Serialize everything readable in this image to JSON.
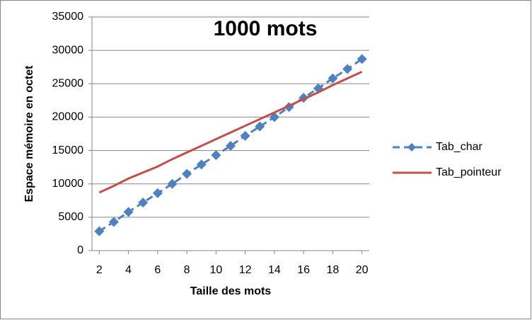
{
  "chart_data": {
    "type": "line",
    "title": "1000 mots",
    "x_label": "Taille des mots",
    "y_label": "Espace mémoire en octet",
    "x": [
      2,
      3,
      4,
      5,
      6,
      7,
      8,
      9,
      10,
      11,
      12,
      13,
      14,
      15,
      16,
      17,
      18,
      19,
      20
    ],
    "series": [
      {
        "name": "Tab_char",
        "color": "#4f81bd",
        "dash": true,
        "marker": "diamond",
        "values": [
          2900,
          4300,
          5800,
          7200,
          8600,
          10000,
          11500,
          12900,
          14300,
          15700,
          17200,
          18600,
          20000,
          21500,
          22900,
          24300,
          25800,
          27200,
          28700
        ]
      },
      {
        "name": "Tab_pointeur",
        "color": "#c0504d",
        "dash": false,
        "marker": null,
        "values": [
          8700,
          9700,
          10800,
          11700,
          12600,
          13700,
          14700,
          15700,
          16700,
          17700,
          18700,
          19700,
          20700,
          21700,
          22700,
          23700,
          24800,
          25800,
          26800
        ]
      }
    ],
    "xlim": [
      1.5,
      20.5
    ],
    "xticks": [
      2,
      4,
      6,
      8,
      10,
      12,
      14,
      16,
      18,
      20
    ],
    "ylim": [
      0,
      35000
    ],
    "yticks": [
      0,
      5000,
      10000,
      15000,
      20000,
      25000,
      30000,
      35000
    ],
    "grid": true,
    "legend": "right"
  }
}
